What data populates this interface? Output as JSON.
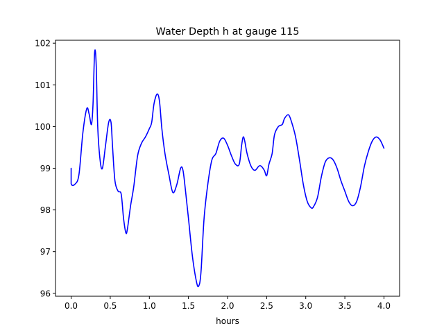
{
  "chart_data": {
    "type": "line",
    "title": "Water Depth h at gauge 115",
    "xlabel": "hours",
    "ylabel": "",
    "xlim": [
      -0.2,
      4.2
    ],
    "ylim": [
      95.93,
      102.07
    ],
    "xticks": [
      0.0,
      0.5,
      1.0,
      1.5,
      2.0,
      2.5,
      3.0,
      3.5,
      4.0
    ],
    "xtick_labels": [
      "0.0",
      "0.5",
      "1.0",
      "1.5",
      "2.0",
      "2.5",
      "3.0",
      "3.5",
      "4.0"
    ],
    "yticks": [
      96,
      97,
      98,
      99,
      100,
      101,
      102
    ],
    "ytick_labels": [
      "96",
      "97",
      "98",
      "99",
      "100",
      "101",
      "102"
    ],
    "grid": false,
    "series": [
      {
        "color": "#0000ff",
        "x": [
          0.0,
          0.0,
          0.05,
          0.1,
          0.15,
          0.2,
          0.23,
          0.26,
          0.28,
          0.3,
          0.32,
          0.34,
          0.37,
          0.4,
          0.44,
          0.48,
          0.51,
          0.53,
          0.56,
          0.6,
          0.64,
          0.67,
          0.7,
          0.72,
          0.76,
          0.8,
          0.85,
          0.9,
          0.95,
          1.0,
          1.03,
          1.06,
          1.1,
          1.13,
          1.16,
          1.2,
          1.25,
          1.3,
          1.35,
          1.4,
          1.43,
          1.46,
          1.5,
          1.55,
          1.6,
          1.63,
          1.66,
          1.7,
          1.75,
          1.8,
          1.85,
          1.9,
          1.95,
          2.0,
          2.05,
          2.1,
          2.15,
          2.18,
          2.2,
          2.22,
          2.25,
          2.3,
          2.35,
          2.4,
          2.43,
          2.47,
          2.5,
          2.53,
          2.57,
          2.6,
          2.65,
          2.7,
          2.73,
          2.78,
          2.82,
          2.87,
          2.92,
          2.97,
          3.02,
          3.07,
          3.1,
          3.15,
          3.2,
          3.25,
          3.3,
          3.35,
          3.4,
          3.45,
          3.5,
          3.55,
          3.6,
          3.65,
          3.7,
          3.75,
          3.8,
          3.85,
          3.9,
          3.95,
          4.0
        ],
        "y": [
          99.0,
          98.63,
          98.62,
          98.85,
          99.85,
          100.43,
          100.3,
          100.05,
          100.55,
          101.77,
          101.5,
          100.0,
          99.2,
          99.0,
          99.55,
          100.1,
          100.1,
          99.5,
          98.7,
          98.45,
          98.38,
          97.8,
          97.45,
          97.55,
          98.1,
          98.55,
          99.3,
          99.6,
          99.75,
          99.95,
          100.1,
          100.55,
          100.78,
          100.6,
          99.95,
          99.35,
          98.85,
          98.42,
          98.6,
          99.0,
          98.95,
          98.5,
          97.8,
          96.9,
          96.3,
          96.17,
          96.5,
          97.8,
          98.65,
          99.2,
          99.35,
          99.65,
          99.72,
          99.55,
          99.3,
          99.1,
          99.1,
          99.55,
          99.75,
          99.65,
          99.35,
          99.05,
          98.95,
          99.05,
          99.05,
          98.95,
          98.82,
          99.1,
          99.35,
          99.8,
          100.0,
          100.05,
          100.2,
          100.28,
          100.1,
          99.75,
          99.2,
          98.6,
          98.2,
          98.05,
          98.08,
          98.3,
          98.8,
          99.15,
          99.25,
          99.2,
          99.0,
          98.7,
          98.45,
          98.2,
          98.1,
          98.2,
          98.55,
          99.05,
          99.4,
          99.65,
          99.75,
          99.68,
          99.48
        ]
      }
    ]
  }
}
